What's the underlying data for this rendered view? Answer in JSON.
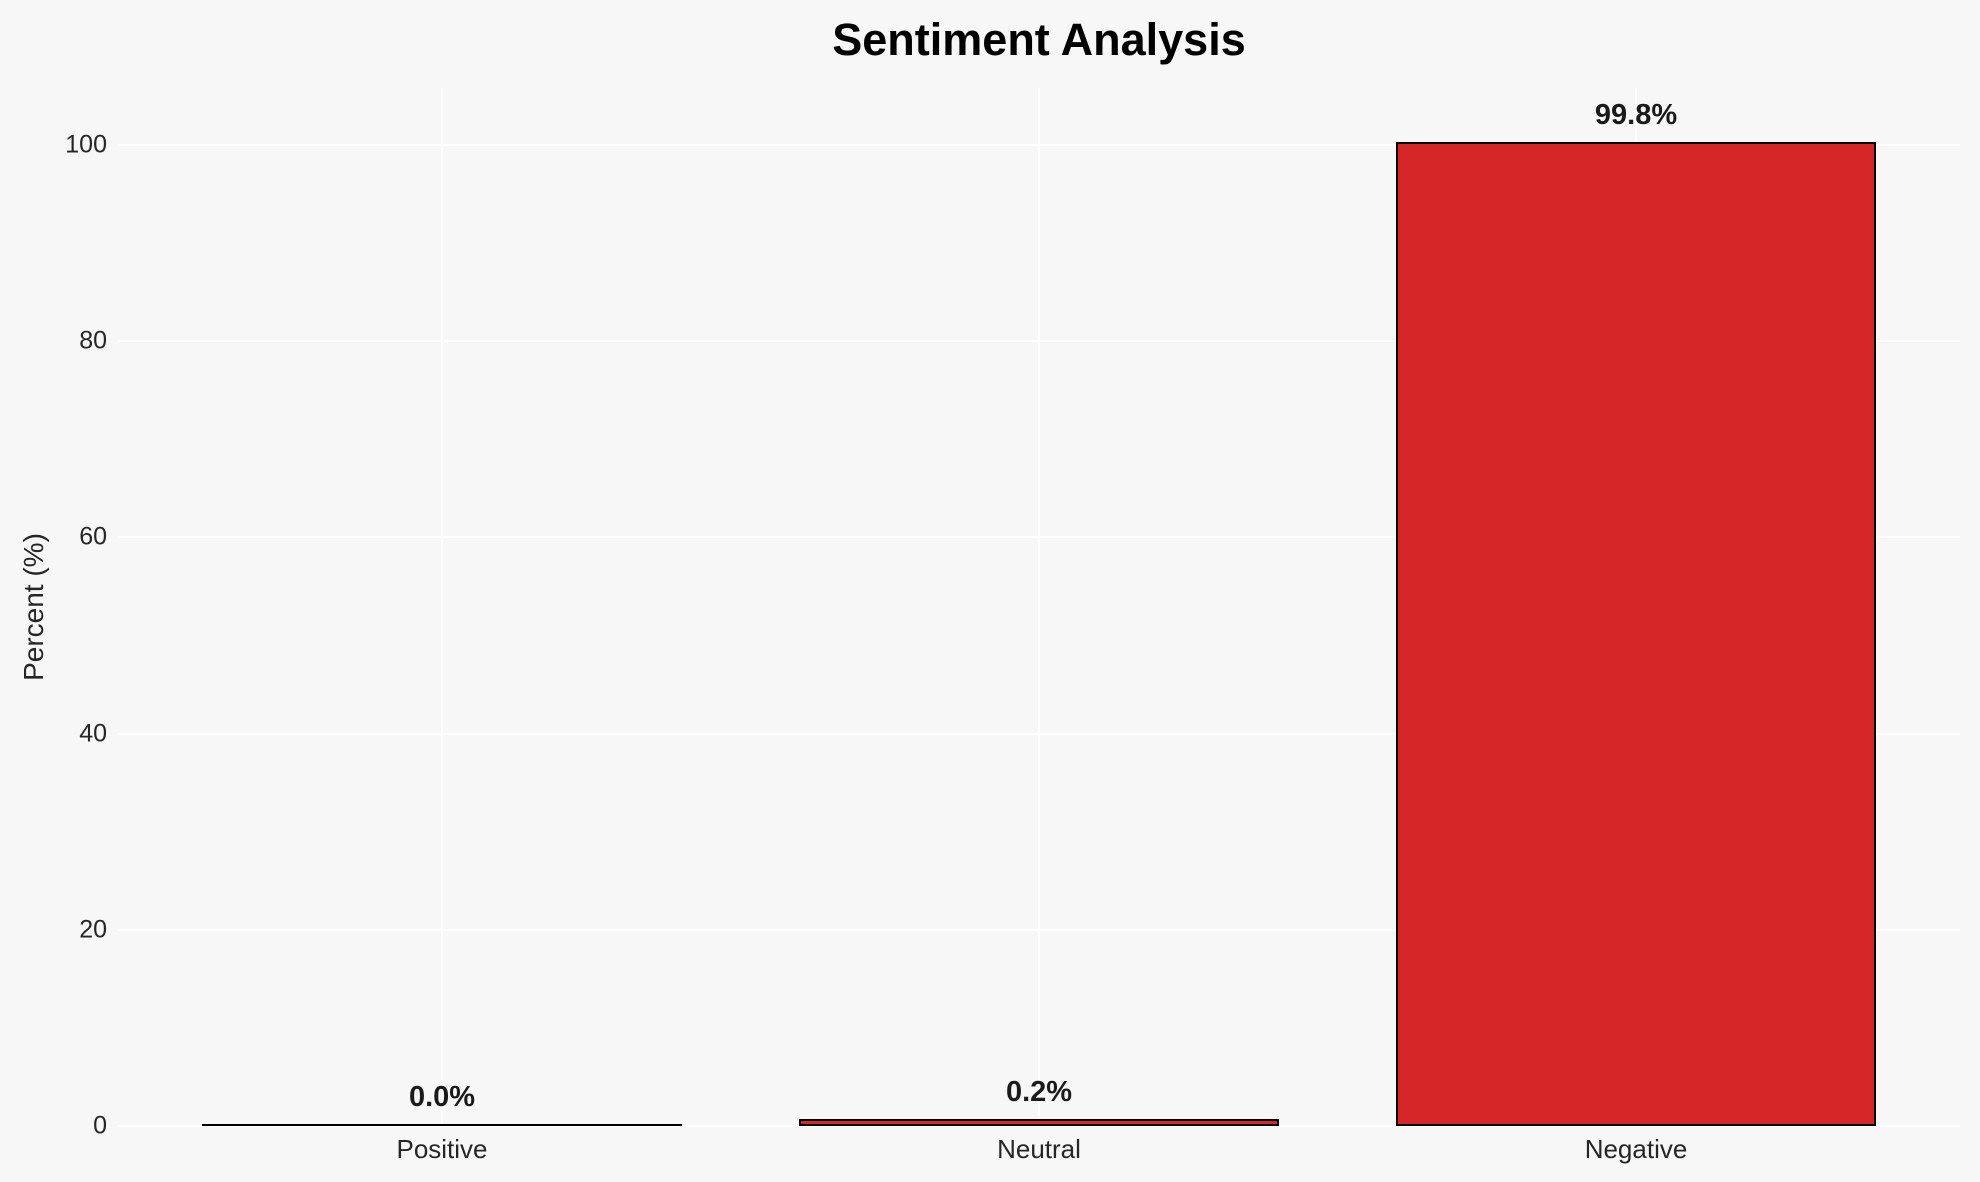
{
  "chart_data": {
    "type": "bar",
    "title": "Sentiment Analysis",
    "ylabel": "Percent (%)",
    "xlabel": "",
    "categories": [
      "Positive",
      "Neutral",
      "Negative"
    ],
    "values": [
      0.0,
      0.2,
      99.8
    ],
    "value_labels": [
      "0.0%",
      "0.2%",
      "99.8%"
    ],
    "yticks": [
      0,
      20,
      40,
      60,
      80,
      100
    ],
    "ylim": [
      0,
      105.8
    ],
    "grid": true,
    "legend": false,
    "colors": {
      "bar_fill": "#d62728",
      "bar_edge": "#000000",
      "background": "#f7f7f7",
      "gridline": "#ffffff",
      "title_text": "#000000",
      "tick_text": "#262626",
      "value_label_text": "#1a1a1a"
    }
  }
}
